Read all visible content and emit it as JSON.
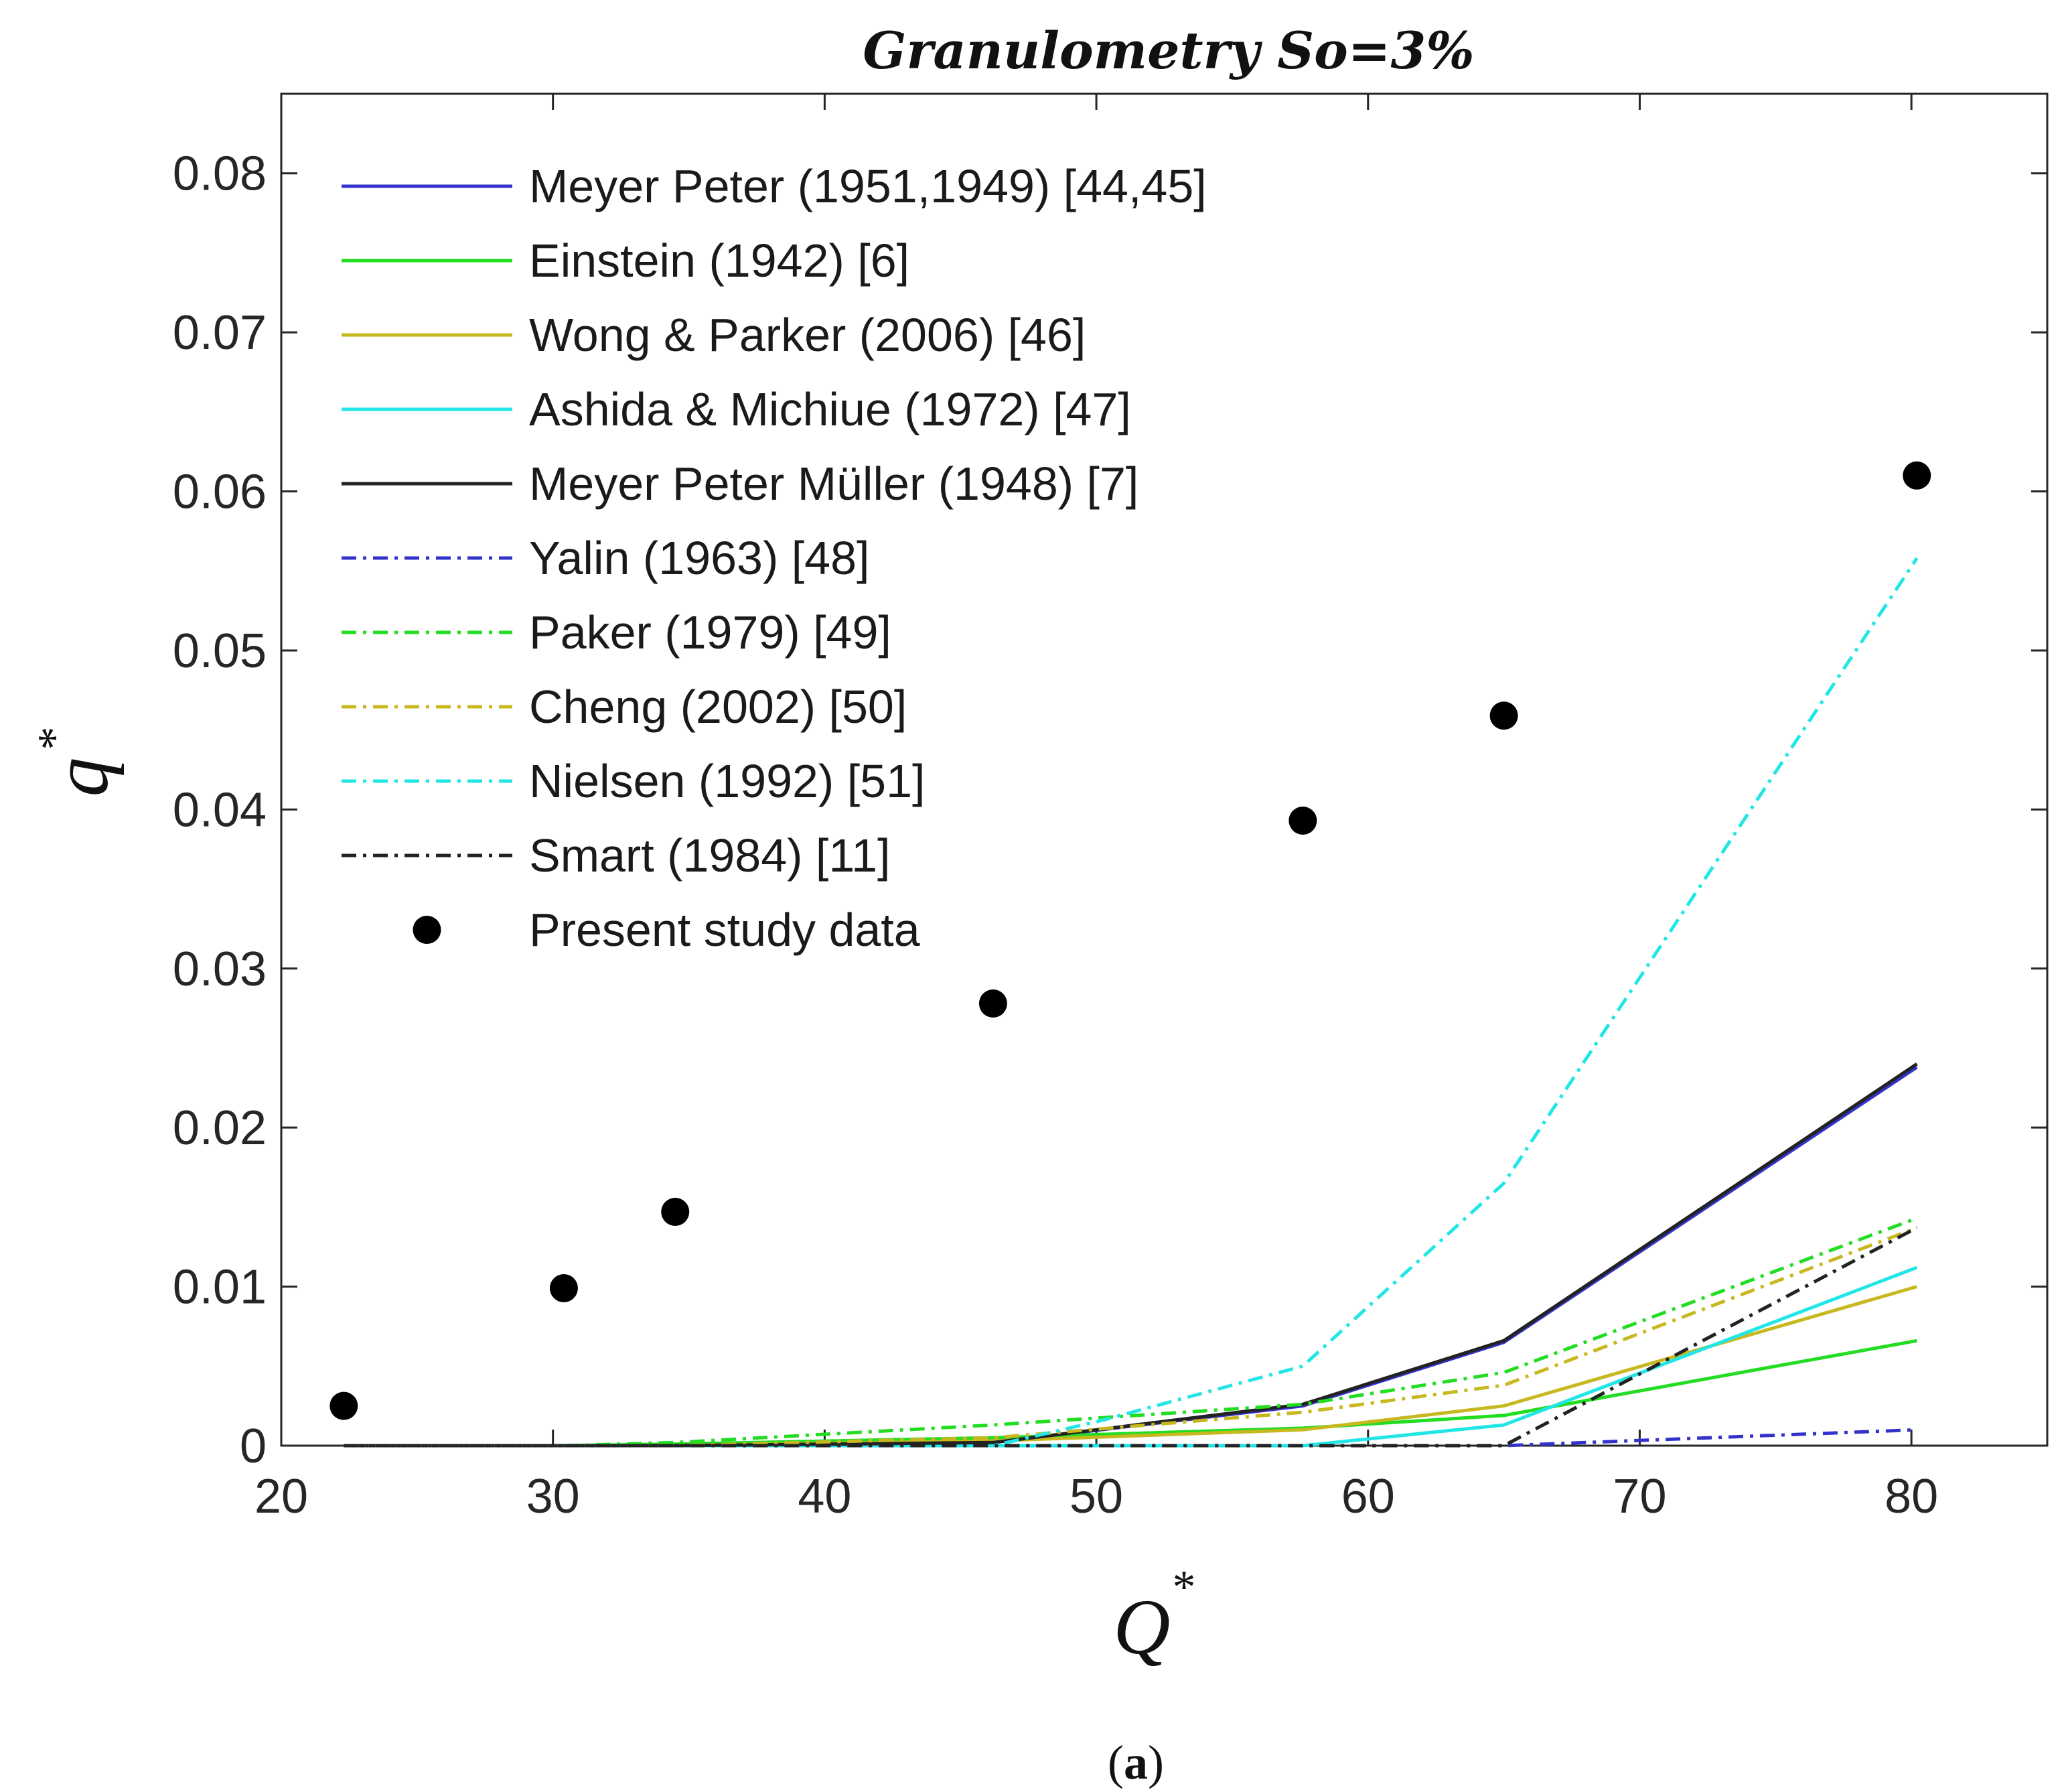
{
  "chart_data": {
    "type": "line",
    "title": "Granulometry So=3%",
    "xlabel": "Q",
    "xlabel_superscript": "*",
    "ylabel": "q",
    "ylabel_superscript": "*",
    "xlim": [
      20,
      85
    ],
    "ylim": [
      0,
      0.085
    ],
    "xticks": [
      20,
      30,
      40,
      50,
      60,
      70,
      80
    ],
    "yticks": [
      0,
      0.01,
      0.02,
      0.03,
      0.04,
      0.05,
      0.06,
      0.07,
      0.08
    ],
    "ytick_labels": [
      "0",
      "0.01",
      "0.02",
      "0.03",
      "0.04",
      "0.05",
      "0.06",
      "0.07",
      "0.08"
    ],
    "grid": false,
    "legend_position": "top-left",
    "caption_prefix": "(",
    "caption_letter": "a",
    "caption_suffix": ")",
    "series": [
      {
        "name": "Meyer Peter (1951,1949) [44,45]",
        "color": "#3333cc",
        "style": "solid",
        "x": [
          22.3,
          30.4,
          34.5,
          46.2,
          57.6,
          65.0,
          80.2
        ],
        "y": [
          0,
          0,
          0,
          0.0002,
          0.0025,
          0.0065,
          0.0238
        ]
      },
      {
        "name": "Einstein (1942) [6]",
        "color": "#22dd22",
        "style": "solid",
        "x": [
          22.3,
          30.4,
          34.5,
          46.2,
          57.6,
          65.0,
          80.2
        ],
        "y": [
          0,
          0,
          0.0001,
          0.0005,
          0.0011,
          0.0019,
          0.0066
        ]
      },
      {
        "name": "Wong & Parker (2006) [46]",
        "color": "#c8b820",
        "style": "solid",
        "x": [
          22.3,
          30.4,
          34.5,
          46.2,
          57.6,
          65.0,
          80.2
        ],
        "y": [
          0,
          0,
          0,
          0.0003,
          0.001,
          0.0025,
          0.01
        ]
      },
      {
        "name": "Ashida & Michiue (1972) [47]",
        "color": "#22e6e6",
        "style": "solid",
        "x": [
          22.3,
          30.4,
          34.5,
          46.2,
          57.6,
          65.0,
          80.2
        ],
        "y": [
          0,
          0,
          0,
          0,
          0,
          0.0013,
          0.0112
        ]
      },
      {
        "name": "Meyer Peter Müller (1948) [7]",
        "color": "#222222",
        "style": "solid",
        "x": [
          22.3,
          30.4,
          34.5,
          46.2,
          57.6,
          65.0,
          80.2
        ],
        "y": [
          0,
          0,
          0,
          0.0002,
          0.0026,
          0.0066,
          0.024
        ]
      },
      {
        "name": "Yalin (1963) [48]",
        "color": "#3333cc",
        "style": "dashdot",
        "x": [
          22.3,
          30.4,
          34.5,
          46.2,
          57.6,
          65.0,
          80.2
        ],
        "y": [
          0,
          0,
          0,
          0,
          0,
          0,
          0.001
        ]
      },
      {
        "name": "Paker (1979) [49]",
        "color": "#22dd22",
        "style": "dashdot",
        "x": [
          22.3,
          30.4,
          34.5,
          46.2,
          57.6,
          65.0,
          80.2
        ],
        "y": [
          0,
          0,
          0.0002,
          0.0013,
          0.0026,
          0.0046,
          0.0143
        ]
      },
      {
        "name": "Cheng (2002) [50]",
        "color": "#c8b820",
        "style": "dashdot",
        "x": [
          22.3,
          30.4,
          34.5,
          46.2,
          57.6,
          65.0,
          80.2
        ],
        "y": [
          0,
          0,
          0,
          0.0005,
          0.0021,
          0.0038,
          0.0137
        ]
      },
      {
        "name": "Nielsen (1992) [51]",
        "color": "#22e6e6",
        "style": "dashdot",
        "x": [
          22.3,
          30.4,
          34.5,
          46.2,
          50.0,
          57.6,
          65.0,
          80.2
        ],
        "y": [
          0,
          0,
          0,
          0,
          0.0015,
          0.005,
          0.0165,
          0.0558
        ]
      },
      {
        "name": "Smart (1984) [11]",
        "color": "#222222",
        "style": "dashdot",
        "x": [
          22.3,
          30.4,
          34.5,
          46.2,
          57.6,
          65.0,
          80.2
        ],
        "y": [
          0,
          0,
          0,
          0,
          0,
          0,
          0.0137
        ]
      }
    ],
    "scatter": {
      "name": "Present study data",
      "color": "#000000",
      "x": [
        22.3,
        30.4,
        34.5,
        46.2,
        57.6,
        65.0,
        80.2
      ],
      "y": [
        0.0025,
        0.0099,
        0.0147,
        0.0278,
        0.0393,
        0.0459,
        0.061
      ]
    }
  }
}
